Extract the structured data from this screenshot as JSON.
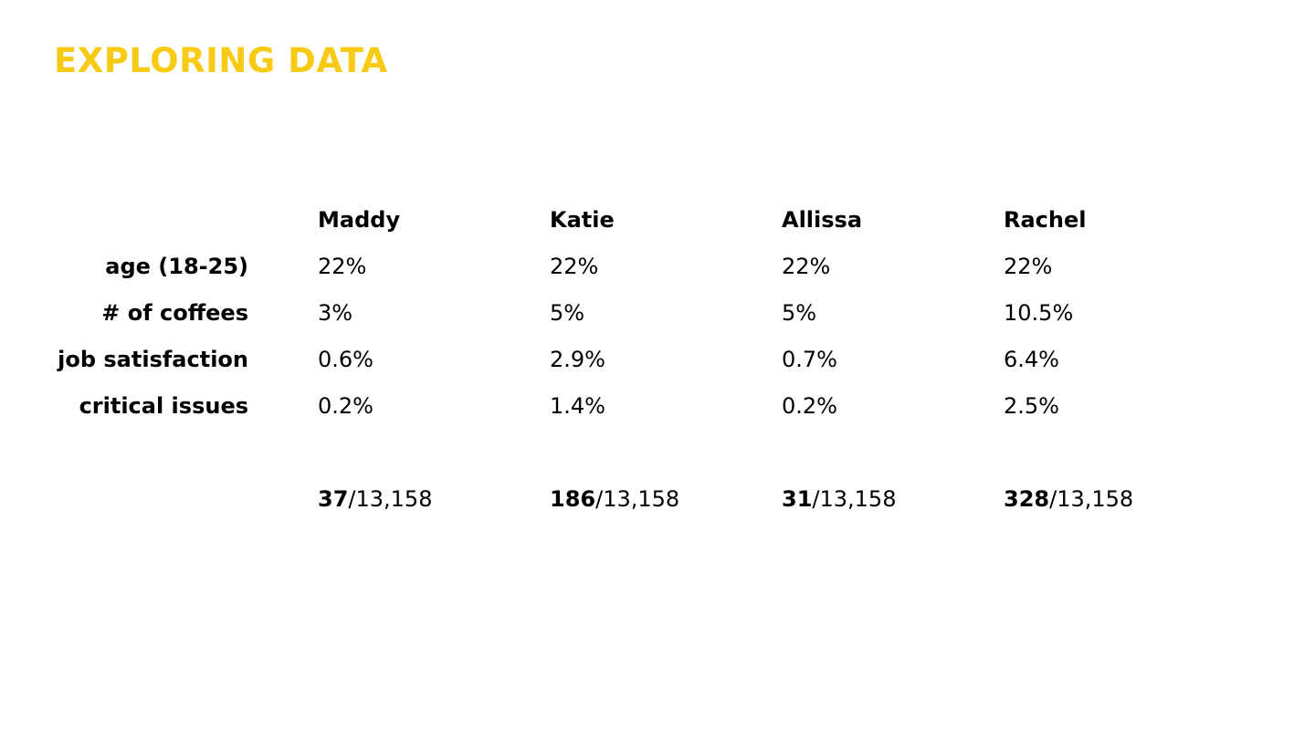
{
  "title": "EXPLORING DATA",
  "accent_color": "#f7cb15",
  "columns": [
    "Maddy",
    "Katie",
    "Allissa",
    "Rachel"
  ],
  "rows": [
    {
      "label": "age (18-25)",
      "values": [
        "22%",
        "22%",
        "22%",
        "22%"
      ]
    },
    {
      "label": "# of coffees",
      "values": [
        "3%",
        "5%",
        "5%",
        "10.5%"
      ]
    },
    {
      "label": "job satisfaction",
      "values": [
        "0.6%",
        "2.9%",
        "0.7%",
        "6.4%"
      ]
    },
    {
      "label": "critical issues",
      "values": [
        "0.2%",
        "1.4%",
        "0.2%",
        "2.5%"
      ]
    }
  ],
  "totals": [
    {
      "count": "37",
      "denominator": "/13,158"
    },
    {
      "count": "186",
      "denominator": "/13,158"
    },
    {
      "count": "31",
      "denominator": "/13,158"
    },
    {
      "count": "328",
      "denominator": "/13,158"
    }
  ]
}
